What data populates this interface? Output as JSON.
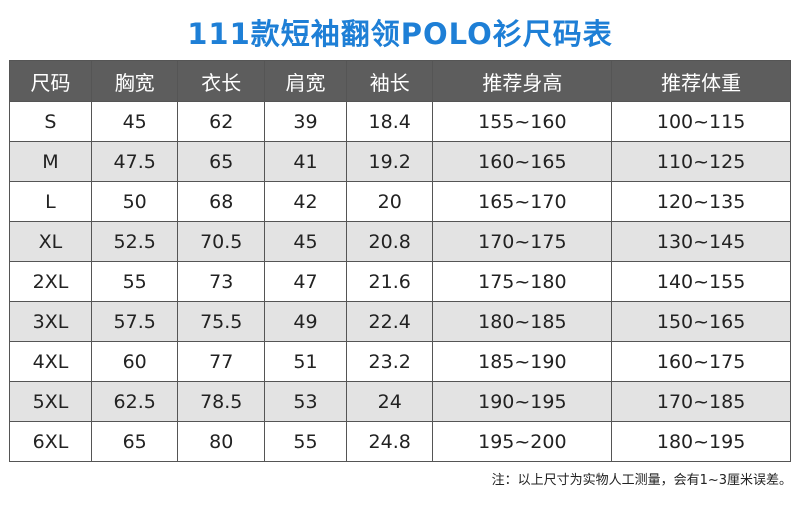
{
  "title": "111款短袖翻领POLO衫尺码表",
  "table": {
    "headers": [
      "尺码",
      "胸宽",
      "衣长",
      "肩宽",
      "袖长",
      "推荐身高",
      "推荐体重"
    ],
    "rows": [
      [
        "S",
        "45",
        "62",
        "39",
        "18.4",
        "155~160",
        "100~115"
      ],
      [
        "M",
        "47.5",
        "65",
        "41",
        "19.2",
        "160~165",
        "110~125"
      ],
      [
        "L",
        "50",
        "68",
        "42",
        "20",
        "165~170",
        "120~135"
      ],
      [
        "XL",
        "52.5",
        "70.5",
        "45",
        "20.8",
        "170~175",
        "130~145"
      ],
      [
        "2XL",
        "55",
        "73",
        "47",
        "21.6",
        "175~180",
        "140~155"
      ],
      [
        "3XL",
        "57.5",
        "75.5",
        "49",
        "22.4",
        "180~185",
        "150~165"
      ],
      [
        "4XL",
        "60",
        "77",
        "51",
        "23.2",
        "185~190",
        "160~175"
      ],
      [
        "5XL",
        "62.5",
        "78.5",
        "53",
        "24",
        "190~195",
        "170~185"
      ],
      [
        "6XL",
        "65",
        "80",
        "55",
        "24.8",
        "195~200",
        "180~195"
      ]
    ]
  },
  "note": "注：以上尺寸为实物人工测量，会有1~3厘米误差。",
  "colors": {
    "title": "#1e7fd6",
    "header_bg": "#5d5d5d",
    "stripe_bg": "#e3e3e3"
  }
}
